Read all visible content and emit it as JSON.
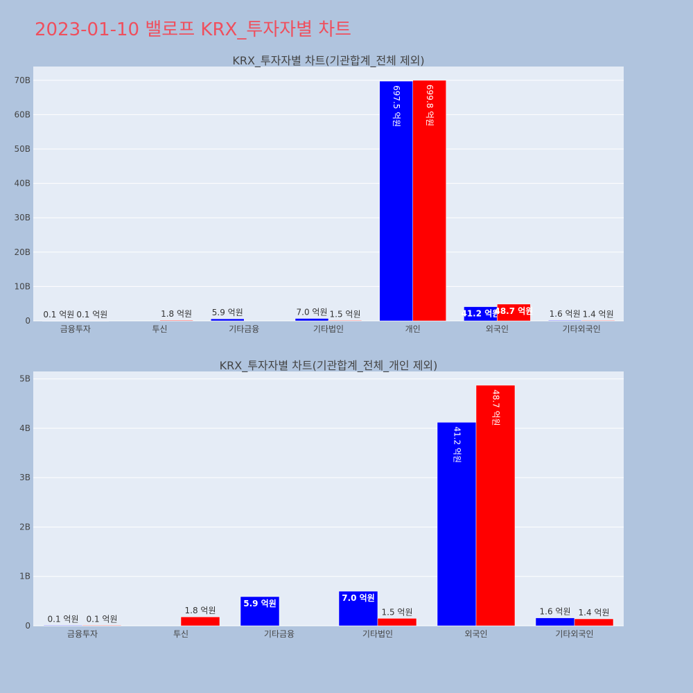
{
  "title": "2023-01-10 밸로프 KRX_투자자별 차트",
  "colors": {
    "buy": "#0000ff",
    "sell": "#ff0000",
    "plot_bg": "#e5ecf6",
    "page_bg": "#b0c4de",
    "title": "#ef4f5d"
  },
  "chart_data": [
    {
      "type": "bar",
      "title": "KRX_투자자별 차트(기관합계_전체 제외)",
      "categories": [
        "금융투자",
        "투신",
        "기타금융",
        "기타법인",
        "개인",
        "외국인",
        "기타외국인"
      ],
      "ylim": [
        0,
        74
      ],
      "yticks": [
        0,
        10,
        20,
        30,
        40,
        50,
        60,
        70
      ],
      "ytick_labels": [
        "0",
        "10B",
        "20B",
        "30B",
        "40B",
        "50B",
        "60B",
        "70B"
      ],
      "grid": true,
      "series": [
        {
          "color": "#0000ff",
          "values": [
            0.01,
            null,
            0.59,
            0.7,
            69.75,
            4.12,
            0.16
          ],
          "labels": [
            "0.1 억원",
            "",
            "5.9 억원",
            "7.0 억원",
            "697.5 억원",
            "41.2 억원",
            "1.6 억원"
          ]
        },
        {
          "color": "#ff0000",
          "values": [
            0.01,
            0.18,
            null,
            0.15,
            69.98,
            4.87,
            0.14
          ],
          "labels": [
            "0.1 억원",
            "1.8 억원",
            "",
            "1.5 억원",
            "699.8 억원",
            "48.7 억원",
            "1.4 억원"
          ]
        }
      ]
    },
    {
      "type": "bar",
      "title": "KRX_투자자별 차트(기관합계_전체_개인 제외)",
      "categories": [
        "금융투자",
        "투신",
        "기타금융",
        "기타법인",
        "외국인",
        "기타외국인"
      ],
      "ylim": [
        0,
        5.15
      ],
      "yticks": [
        0,
        1,
        2,
        3,
        4,
        5
      ],
      "ytick_labels": [
        "0",
        "1B",
        "2B",
        "3B",
        "4B",
        "5B"
      ],
      "grid": true,
      "series": [
        {
          "color": "#0000ff",
          "values": [
            0.01,
            null,
            0.59,
            0.7,
            4.12,
            0.16
          ],
          "labels": [
            "0.1 억원",
            "",
            "5.9 억원",
            "7.0 억원",
            "41.2 억원",
            "1.6 억원"
          ]
        },
        {
          "color": "#ff0000",
          "values": [
            0.01,
            0.18,
            null,
            0.15,
            4.87,
            0.14
          ],
          "labels": [
            "0.1 억원",
            "1.8 억원",
            "",
            "1.5 억원",
            "48.7 억원",
            "1.4 억원"
          ]
        }
      ]
    }
  ]
}
